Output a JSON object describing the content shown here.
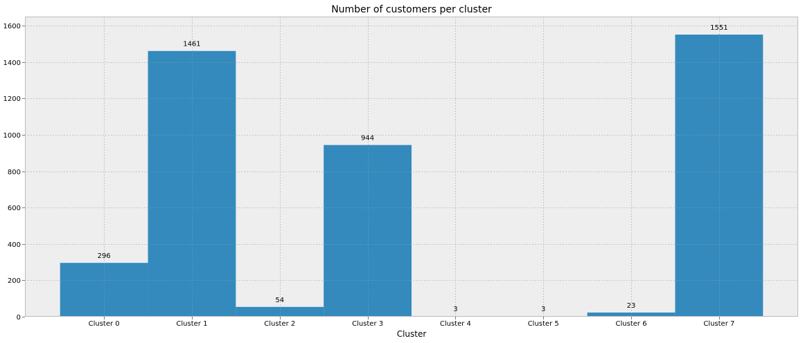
{
  "chart_data": {
    "type": "bar",
    "title": "Number of customers per cluster",
    "xlabel": "Cluster",
    "ylabel": "",
    "categories": [
      "Cluster 0",
      "Cluster 1",
      "Cluster 2",
      "Cluster 3",
      "Cluster 4",
      "Cluster 5",
      "Cluster 6",
      "Cluster 7"
    ],
    "values": [
      296,
      1461,
      54,
      944,
      3,
      3,
      23,
      1551
    ],
    "data_labels": [
      "296",
      "1461",
      "54",
      "944",
      "3",
      "3",
      "23",
      "1551"
    ],
    "ylim": [
      0,
      1650
    ],
    "yticks": [
      0,
      200,
      400,
      600,
      800,
      1000,
      1200,
      1400,
      1600
    ],
    "grid": true,
    "legend": "none",
    "colors": {
      "bar": "#348abd",
      "plot_background": "#eeeeee",
      "grid": "#b2b2b2",
      "spine": "#bcbcbc"
    }
  }
}
